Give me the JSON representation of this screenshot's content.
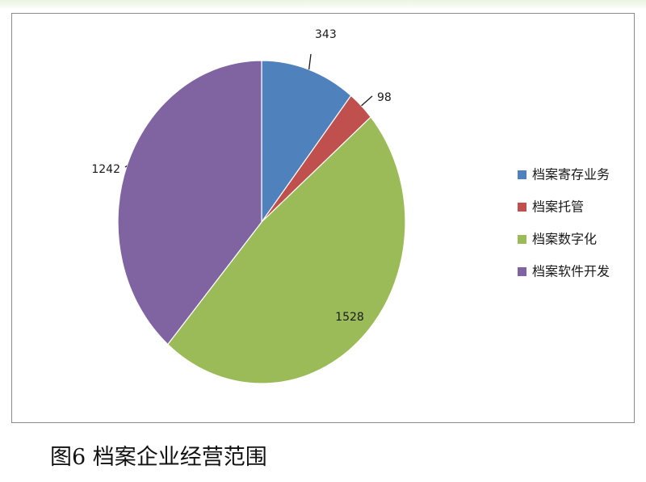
{
  "chart_data": {
    "type": "pie",
    "categories": [
      "档案寄存业务",
      "档案托管",
      "档案数字化",
      "档案软件开发"
    ],
    "values": [
      343,
      98,
      1528,
      1242
    ],
    "colors": [
      "#4f81bd",
      "#c0504d",
      "#9bbb59",
      "#8064a2"
    ],
    "legend_position": "right",
    "data_labels": [
      "343",
      "98",
      "1528",
      "1242"
    ]
  },
  "caption": "图6 档案企业经营范围"
}
